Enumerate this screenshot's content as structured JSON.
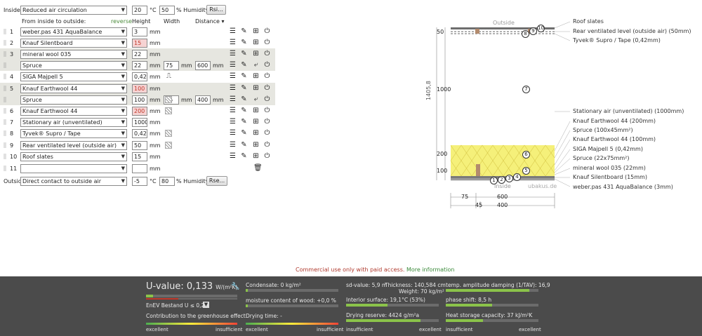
{
  "inside": {
    "label": "Inside:",
    "climate": "Reduced air circulation",
    "temp": "20",
    "temp_unit": "°C",
    "humidity": "50",
    "humidity_unit": "% Humidity",
    "rsi_button": "Rsi..."
  },
  "headers": {
    "from_inside": "From inside to outside:",
    "reverse": "reverse",
    "height": "Height",
    "width": "Width",
    "distance": "Distance"
  },
  "layers": [
    {
      "num": "1",
      "material": "weber.pas 431 AquaBalance",
      "height": "3",
      "unit": "mm"
    },
    {
      "num": "2",
      "material": "Knauf Silentboard",
      "height": "15",
      "unit": "mm",
      "red": true
    },
    {
      "num": "3",
      "material": "mineral wool 035",
      "height": "22",
      "unit": "mm"
    },
    {
      "num": "",
      "material": "Spruce",
      "height": "22",
      "unit": "mm",
      "width": "75",
      "width_unit": "mm",
      "distance": "600",
      "distance_unit": "mm"
    },
    {
      "num": "4",
      "material": "SIGA Majpell 5",
      "height": "0,42",
      "unit": "mm"
    },
    {
      "num": "5",
      "material": "Knauf Earthwool 44",
      "height": "100",
      "unit": "mm",
      "red": true
    },
    {
      "num": "",
      "material": "Spruce",
      "height": "100",
      "unit": "mm",
      "width": "45",
      "width_unit": "mm",
      "distance": "400",
      "distance_unit": "mm"
    },
    {
      "num": "6",
      "material": "Knauf Earthwool 44",
      "height": "200",
      "unit": "mm",
      "red": true
    },
    {
      "num": "7",
      "material": "Stationary air (unventilated)",
      "height": "1000",
      "unit": "mm"
    },
    {
      "num": "8",
      "material": "Tyvek® Supro / Tape",
      "height": "0,42",
      "unit": "mm"
    },
    {
      "num": "9",
      "material": "Rear ventilated level (outside air)",
      "height": "50",
      "unit": "mm"
    },
    {
      "num": "10",
      "material": "Roof slates",
      "height": "15",
      "unit": "mm"
    },
    {
      "num": "11",
      "material": "",
      "height": "",
      "unit": "mm"
    }
  ],
  "outside": {
    "label": "Outside",
    "climate": "Direct contact to outside air",
    "temp": "-5",
    "temp_unit": "°C",
    "humidity": "80",
    "humidity_unit": "% Humidity",
    "rse_button": "Rse..."
  },
  "diagram": {
    "outside_label": "Outside",
    "inside_label": "Inside",
    "watermark": "ubakus.de",
    "total_height": "1405,8",
    "dim_50": "50",
    "dim_1000": "1000",
    "dim_200": "200",
    "dim_100": "100",
    "dim_75": "75",
    "dim_600": "600",
    "dim_45": "45",
    "dim_400": "400",
    "legend_top": [
      "Roof slates",
      "Rear ventilated level (outside air) (50mm)",
      "Tyvek® Supro / Tape (0,42mm)"
    ],
    "legend_bottom": [
      "Stationary air (unventilated) (1000mm)",
      "Knauf Earthwool 44 (200mm)",
      "Spruce (100x45mm²)",
      "Knauf Earthwool 44 (100mm)",
      "SIGA Majpell 5 (0,42mm)",
      "Spruce (22x75mm²)",
      "mineral wool 035 (22mm)",
      "Knauf Silentboard (15mm)",
      "weber.pas 431 AquaBalance (3mm)"
    ],
    "markers_top": [
      "8",
      "9",
      "10"
    ],
    "marker_mid": "7",
    "markers_low": [
      "6",
      "5"
    ],
    "markers_bottom": [
      "1",
      "2",
      "3",
      "4"
    ]
  },
  "notice": {
    "text": "Commercial use only with paid access.",
    "link": "More information"
  },
  "results": {
    "u_label": "U-value:",
    "u_value": "0,133",
    "u_unit": "W/(m²K)",
    "enev": "EnEV Bestand U ≤ 0,24",
    "greenhouse": "Contribution to the greenhouse effect:",
    "excellent": "excellent",
    "insufficient": "insufficient",
    "condensate": "Condensate: 0 kg/m²",
    "moisture": "moisture content of wood: +0,0 %",
    "drying_time": "Drying time: -",
    "sd_value": "sd-value: 5,9 m",
    "thickness": "Thickness: 140,584 cm",
    "weight": "Weight: 70 kg/m²",
    "interior_surface": "Interior surface: 19,1°C (53%)",
    "drying_reserve": "Drying reserve: 4424 g/m²a",
    "temp_amplitude": "temp. amplitude damping (1/TAV): 16,9",
    "phase_shift": "phase shift: 8,5 h",
    "heat_storage": "Heat storage capacity: 37 kJ/m²K",
    "u_fill": 0.08,
    "enev_fill": 0.35,
    "condensate_fill": 0.02,
    "moisture_fill": 0.02,
    "interior_fill": 0.45,
    "drying_reserve_fill": 0.8,
    "temp_amp_fill": 0.9,
    "phase_fill": 0.5,
    "heat_fill": 0.4
  }
}
